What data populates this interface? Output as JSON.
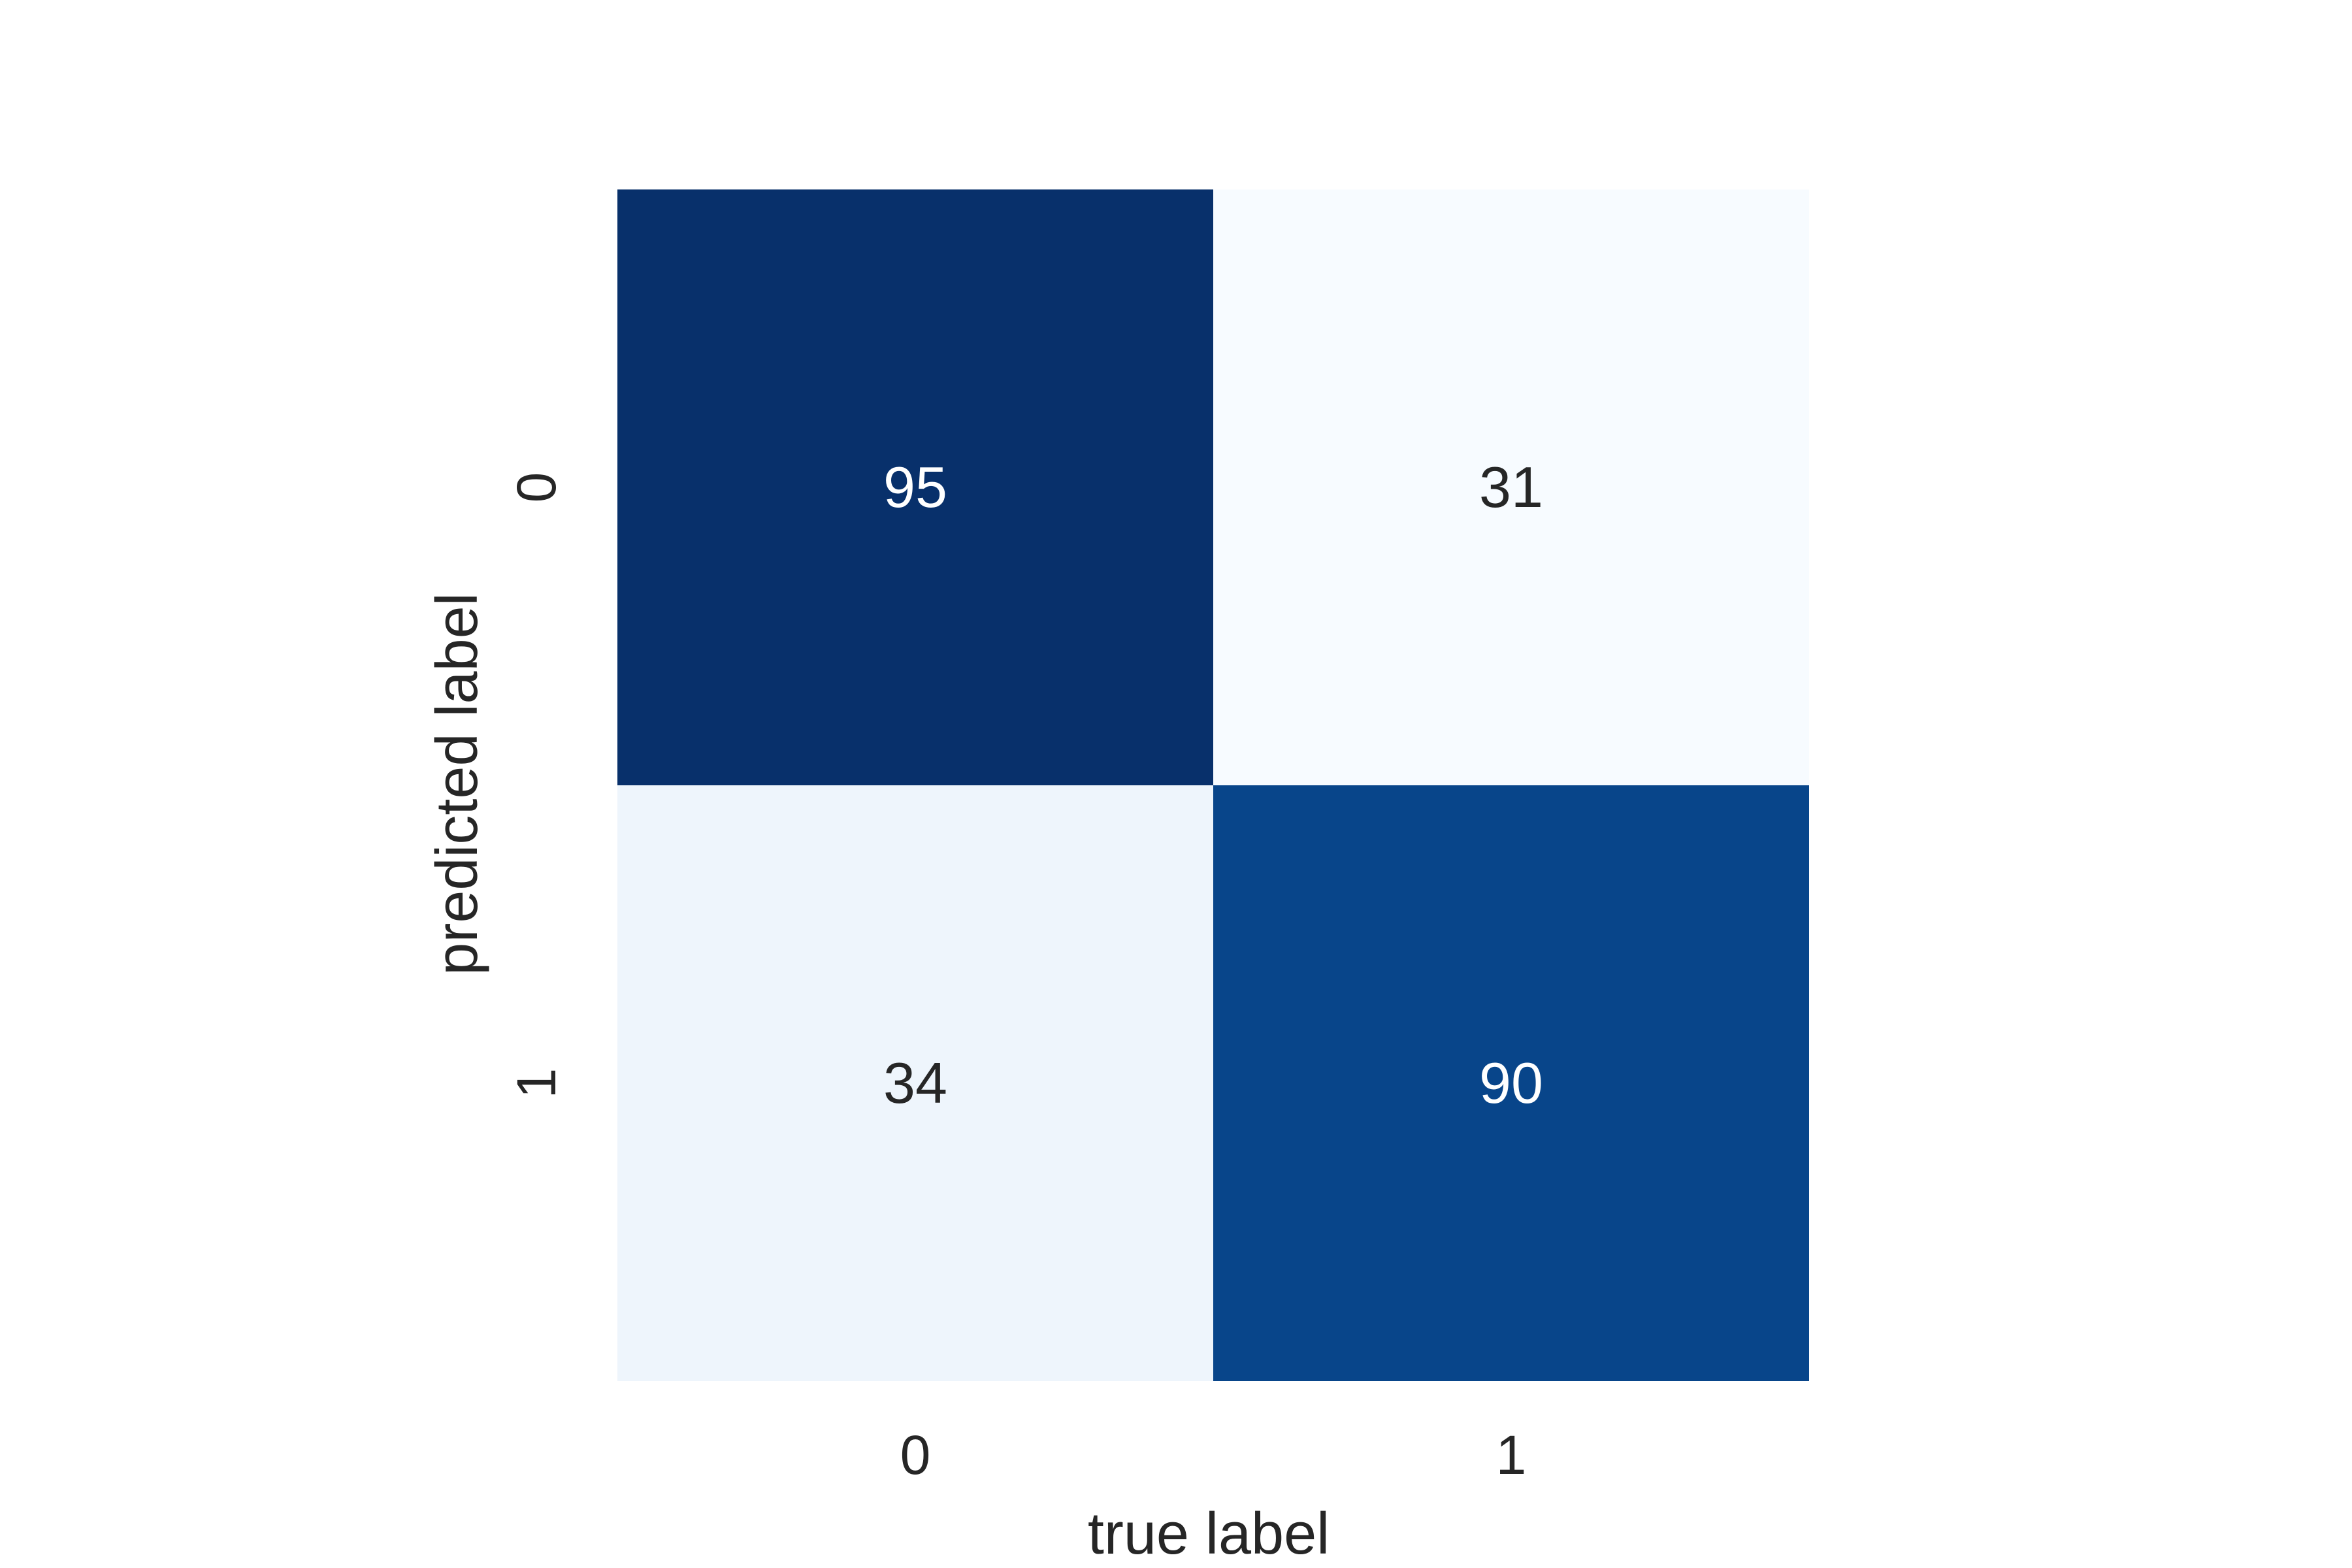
{
  "chart_data": {
    "type": "heatmap",
    "title": "",
    "xlabel": "true label",
    "ylabel": "predicted label",
    "x_categories": [
      "0",
      "1"
    ],
    "y_categories": [
      "0",
      "1"
    ],
    "values": [
      [
        95,
        31
      ],
      [
        34,
        90
      ]
    ],
    "colormap": "Blues",
    "colorbar": false,
    "grid": false,
    "colors": {
      "low": "#f7fbff",
      "high": "#08306b",
      "text_dark": "#262626",
      "text_light": "#ffffff"
    }
  }
}
